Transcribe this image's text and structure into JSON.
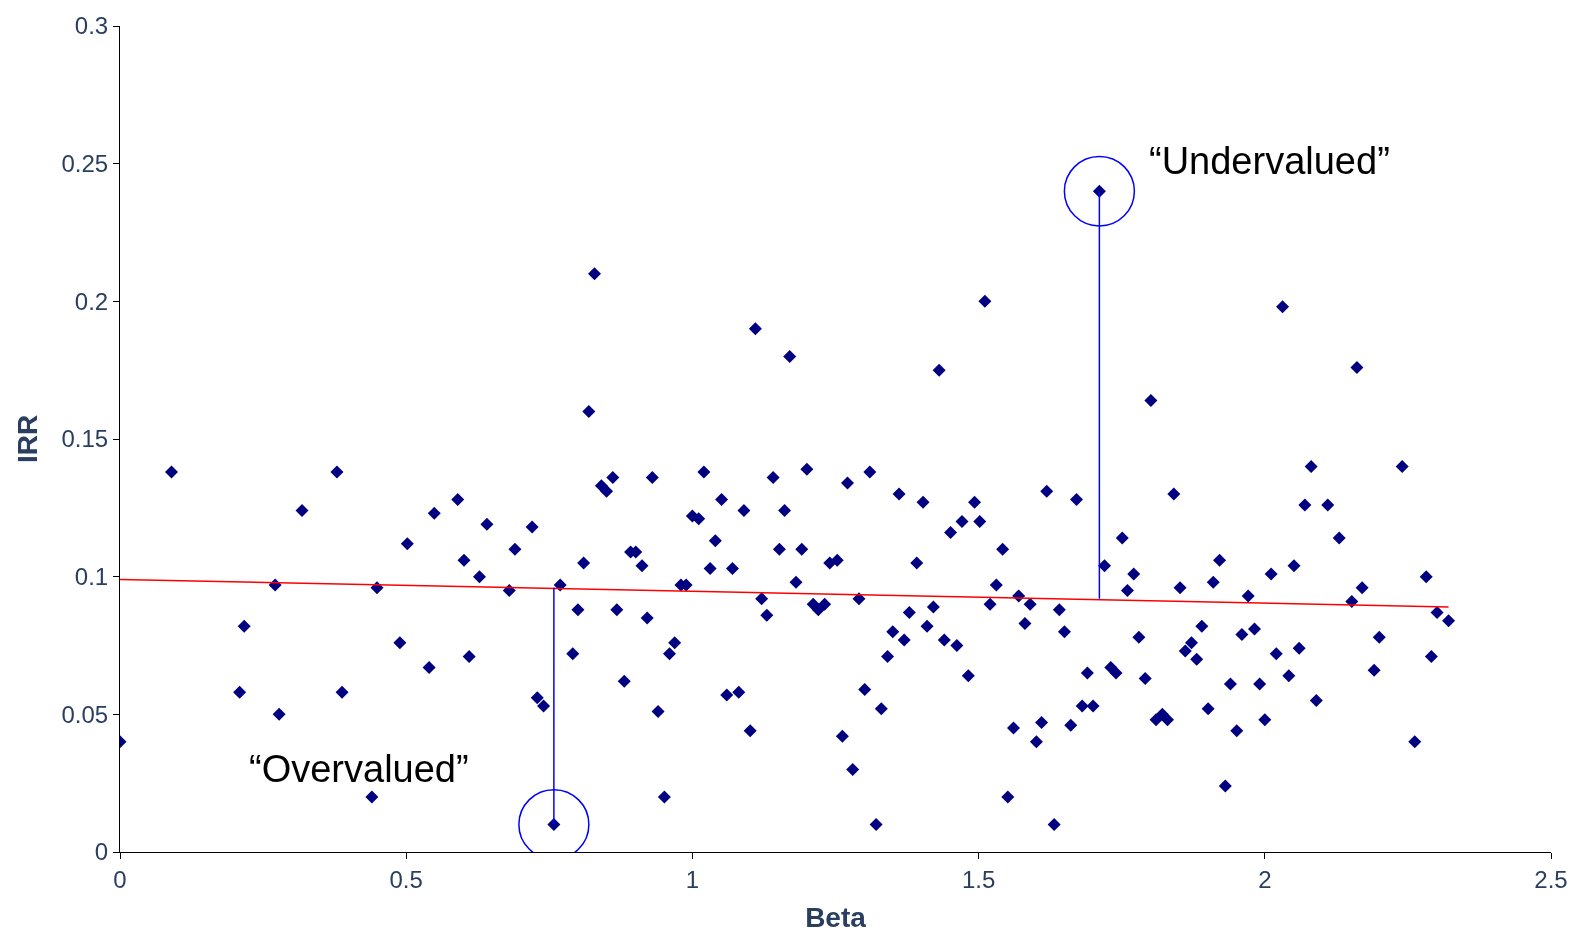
{
  "chart_data": {
    "type": "scatter",
    "xlabel": "Beta",
    "ylabel": "IRR",
    "xlim": [
      0,
      2.5
    ],
    "xticks": [
      0,
      0.5,
      1,
      1.5,
      2,
      2.5
    ],
    "ylim": [
      0,
      0.3
    ],
    "yticks": [
      0,
      0.05,
      0.1,
      0.15,
      0.2,
      0.25,
      0.3
    ],
    "series": [
      {
        "color": "#000080",
        "marker": "diamond",
        "x": [
          0,
          0.09,
          0.209,
          0.217,
          0.271,
          0.278,
          0.318,
          0.379,
          0.388,
          0.44,
          0.449,
          0.489,
          0.502,
          0.54,
          0.549,
          0.59,
          0.601,
          0.61,
          0.628,
          0.641,
          0.68,
          0.69,
          0.72,
          0.729,
          0.74,
          0.758,
          0.769,
          0.791,
          0.8,
          0.81,
          0.819,
          0.829,
          0.841,
          0.85,
          0.861,
          0.868,
          0.881,
          0.892,
          0.901,
          0.912,
          0.921,
          0.93,
          0.94,
          0.951,
          0.96,
          0.969,
          0.98,
          0.989,
          1.0,
          1.011,
          1.02,
          1.031,
          1.04,
          1.051,
          1.06,
          1.07,
          1.081,
          1.09,
          1.101,
          1.11,
          1.121,
          1.13,
          1.141,
          1.152,
          1.161,
          1.17,
          1.181,
          1.191,
          1.2,
          1.211,
          1.22,
          1.231,
          1.24,
          1.253,
          1.262,
          1.271,
          1.28,
          1.291,
          1.301,
          1.31,
          1.321,
          1.33,
          1.341,
          1.35,
          1.361,
          1.37,
          1.379,
          1.392,
          1.403,
          1.41,
          1.421,
          1.431,
          1.44,
          1.451,
          1.462,
          1.471,
          1.482,
          1.493,
          1.502,
          1.511,
          1.52,
          1.531,
          1.542,
          1.551,
          1.561,
          1.57,
          1.581,
          1.59,
          1.601,
          1.61,
          1.619,
          1.632,
          1.641,
          1.65,
          1.661,
          1.671,
          1.681,
          1.69,
          1.7,
          1.711,
          1.72,
          1.731,
          1.74,
          1.751,
          1.76,
          1.771,
          1.78,
          1.791,
          1.801,
          1.81,
          1.821,
          1.83,
          1.841,
          1.852,
          1.861,
          1.872,
          1.881,
          1.89,
          1.901,
          1.91,
          1.921,
          1.931,
          1.94,
          1.951,
          1.96,
          1.971,
          1.982,
          1.991,
          2.0,
          2.011,
          2.02,
          2.031,
          2.042,
          2.051,
          2.06,
          2.07,
          2.081,
          2.09,
          2.11,
          2.13,
          2.152,
          2.161,
          2.17,
          2.191,
          2.2,
          2.24,
          2.262,
          2.282,
          2.291,
          2.301,
          2.321
        ],
        "values": [
          0.04,
          0.138,
          0.058,
          0.082,
          0.097,
          0.05,
          0.124,
          0.138,
          0.058,
          0.02,
          0.096,
          0.076,
          0.112,
          0.067,
          0.123,
          0.128,
          0.106,
          0.071,
          0.1,
          0.119,
          0.095,
          0.11,
          0.118,
          0.056,
          0.053,
          0.01,
          0.097,
          0.072,
          0.088,
          0.105,
          0.16,
          0.21,
          0.133,
          0.131,
          0.136,
          0.088,
          0.062,
          0.109,
          0.109,
          0.104,
          0.085,
          0.136,
          0.051,
          0.02,
          0.072,
          0.076,
          0.097,
          0.097,
          0.122,
          0.121,
          0.138,
          0.103,
          0.113,
          0.128,
          0.057,
          0.103,
          0.058,
          0.124,
          0.044,
          0.19,
          0.092,
          0.086,
          0.136,
          0.11,
          0.124,
          0.18,
          0.098,
          0.11,
          0.139,
          0.09,
          0.088,
          0.09,
          0.105,
          0.106,
          0.042,
          0.134,
          0.03,
          0.092,
          0.059,
          0.138,
          0.01,
          0.052,
          0.071,
          0.08,
          0.13,
          0.077,
          0.087,
          0.105,
          0.127,
          0.082,
          0.089,
          0.175,
          0.077,
          0.116,
          0.075,
          0.12,
          0.064,
          0.127,
          0.12,
          0.2,
          0.09,
          0.097,
          0.11,
          0.02,
          0.045,
          0.093,
          0.083,
          0.09,
          0.04,
          0.047,
          0.131,
          0.01,
          0.088,
          0.08,
          0.046,
          0.128,
          0.053,
          0.065,
          0.053,
          0.24,
          0.104,
          0.067,
          0.065,
          0.114,
          0.095,
          0.101,
          0.078,
          0.063,
          0.164,
          0.048,
          0.05,
          0.048,
          0.13,
          0.096,
          0.073,
          0.076,
          0.07,
          0.082,
          0.052,
          0.098,
          0.106,
          0.024,
          0.061,
          0.044,
          0.079,
          0.093,
          0.081,
          0.061,
          0.048,
          0.101,
          0.072,
          0.198,
          0.064,
          0.104,
          0.074,
          0.126,
          0.14,
          0.055,
          0.126,
          0.114,
          0.091,
          0.176,
          0.096,
          0.066,
          0.078,
          0.14,
          0.04,
          0.1,
          0.071,
          0.087,
          0.084
        ]
      },
      {
        "type": "line",
        "marker": "none",
        "color": "#ff0000",
        "x": [
          0,
          2.321
        ],
        "values": [
          0.099,
          0.089
        ]
      },
      {
        "type": "line",
        "color": "#0000ff",
        "x": [
          0.758,
          0.758
        ],
        "values": [
          0.01,
          0.096
        ]
      },
      {
        "type": "line",
        "color": "#0000ff",
        "x": [
          1.711,
          1.711
        ],
        "values": [
          0.24,
          0.092
        ]
      }
    ],
    "annotations": [
      {
        "text": "“Overvalued”",
        "x": 0.758,
        "y": 0.01
      },
      {
        "text": "“Undervalued”",
        "x": 1.711,
        "y": 0.24
      }
    ]
  }
}
